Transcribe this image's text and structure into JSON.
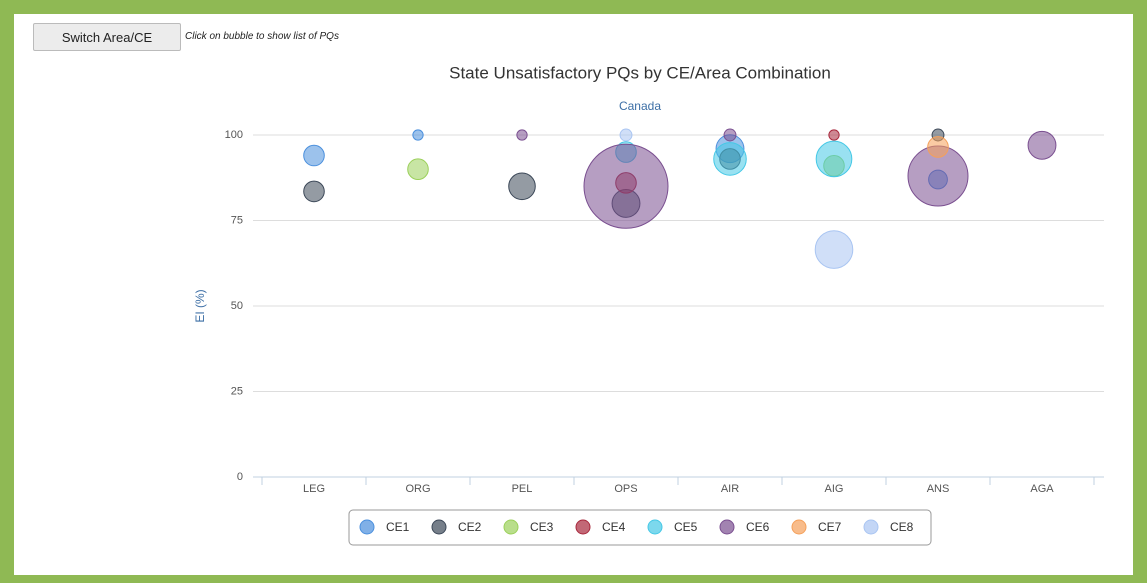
{
  "toolbar": {
    "button": "Switch Area/CE",
    "hint": "Click on bubble to show list of PQs"
  },
  "chart_data": {
    "type": "bubble",
    "title": "State Unsatisfactory PQs by CE/Area Combination",
    "subtitle": "Canada",
    "y_axis_label": "EI (%)",
    "categories": [
      "LEG",
      "ORG",
      "PEL",
      "OPS",
      "AIR",
      "AIG",
      "ANS",
      "AGA"
    ],
    "ylim": [
      0,
      100
    ],
    "yticks": [
      0,
      25,
      50,
      75,
      100
    ],
    "grid": true,
    "series": [
      {
        "name": "CE1",
        "color": "#4a8fdd",
        "values": [
          94,
          100,
          null,
          null,
          96,
          null,
          87,
          null
        ],
        "sizes": [
          6,
          1.5,
          null,
          null,
          11,
          null,
          5,
          null
        ]
      },
      {
        "name": "CE2",
        "color": "#3c4858",
        "values": [
          83.5,
          null,
          85,
          80,
          93,
          null,
          100,
          null
        ],
        "sizes": [
          6,
          null,
          10,
          11,
          6,
          null,
          2,
          null
        ]
      },
      {
        "name": "CE3",
        "color": "#9bd05a",
        "values": [
          null,
          90,
          null,
          null,
          null,
          91,
          null,
          null
        ],
        "sizes": [
          null,
          6,
          null,
          null,
          null,
          6,
          null,
          null
        ]
      },
      {
        "name": "CE4",
        "color": "#a8283c",
        "values": [
          null,
          null,
          null,
          86,
          null,
          100,
          null,
          null
        ],
        "sizes": [
          null,
          null,
          null,
          6,
          null,
          1.5,
          null,
          null
        ]
      },
      {
        "name": "CE5",
        "color": "#45c8e6",
        "values": [
          null,
          null,
          null,
          95,
          93,
          93,
          null,
          null
        ],
        "sizes": [
          null,
          null,
          null,
          6,
          15,
          18,
          null,
          null
        ]
      },
      {
        "name": "CE6",
        "color": "#7a4f90",
        "values": [
          null,
          null,
          100,
          85,
          100,
          null,
          88,
          97
        ],
        "sizes": [
          null,
          null,
          1.5,
          100,
          2,
          null,
          51,
          11
        ]
      },
      {
        "name": "CE7",
        "color": "#f5a05a",
        "values": [
          null,
          null,
          null,
          null,
          null,
          null,
          96.5,
          null
        ],
        "sizes": [
          null,
          null,
          null,
          null,
          null,
          null,
          6,
          null
        ]
      },
      {
        "name": "CE8",
        "color": "#a9c5f2",
        "values": [
          null,
          null,
          null,
          100,
          null,
          66.5,
          null,
          null
        ],
        "sizes": [
          null,
          null,
          null,
          2,
          null,
          20,
          null,
          null
        ]
      }
    ]
  }
}
